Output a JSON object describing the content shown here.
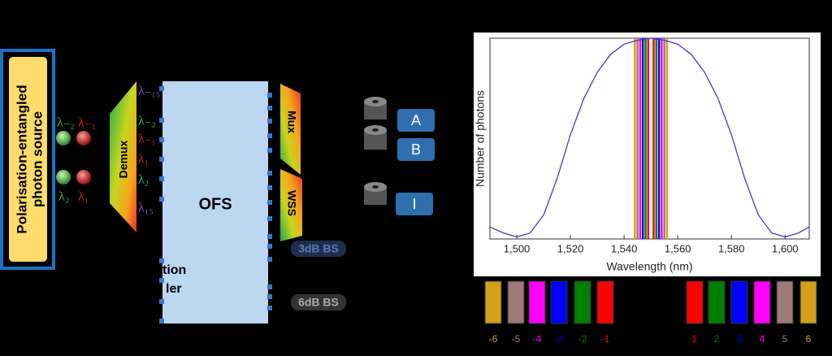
{
  "diagram": {
    "source": [
      "Polarisation-entangled",
      "photon source"
    ],
    "pair_labels": [
      "λ₋₂",
      "λ₋₁",
      "λ₂",
      "λ₁"
    ],
    "demux": "Demux",
    "channel_labels": [
      "λ₋₁₅",
      "λ₋₂",
      "λ₋₁",
      "λ₁",
      "λ₂",
      "λ₁₅"
    ],
    "ofs": "OFS",
    "partial_label": [
      "tion",
      "ler"
    ],
    "mux": "Mux",
    "wss": "WSS",
    "users": [
      "A",
      "B",
      "I"
    ],
    "splitters": [
      "3dB BS",
      "6dB BS"
    ]
  },
  "chart_data": {
    "type": "line",
    "xlabel": "Wavelength (nm)",
    "ylabel": "Number of photons",
    "x": [
      1490,
      1495,
      1500,
      1505,
      1510,
      1515,
      1520,
      1525,
      1530,
      1535,
      1540,
      1545,
      1550,
      1555,
      1560,
      1565,
      1570,
      1575,
      1580,
      1585,
      1590,
      1595,
      1600,
      1605,
      1609
    ],
    "values": [
      0.06,
      0.03,
      0.01,
      0.03,
      0.12,
      0.3,
      0.52,
      0.7,
      0.83,
      0.92,
      0.97,
      0.99,
      1,
      0.99,
      0.97,
      0.92,
      0.83,
      0.7,
      0.52,
      0.3,
      0.12,
      0.03,
      0.01,
      0.03,
      0.06
    ],
    "color": "#3b3bd6",
    "xlim": [
      1490,
      1609
    ],
    "ylim": [
      0,
      1
    ],
    "xticks": [
      {
        "value": 1500,
        "label": "1,500"
      },
      {
        "value": 1520,
        "label": "1,520"
      },
      {
        "value": 1540,
        "label": "1,540"
      },
      {
        "value": 1560,
        "label": "1,560"
      },
      {
        "value": 1580,
        "label": "1,580"
      },
      {
        "value": 1600,
        "label": "1,600"
      }
    ],
    "channels": [
      {
        "name": "-6",
        "color": "#d4a017",
        "wavelength": 1544
      },
      {
        "name": "-5",
        "color": "#9e7b78",
        "wavelength": 1545
      },
      {
        "name": "-4",
        "color": "#ff00ff",
        "wavelength": 1546
      },
      {
        "name": "-3",
        "color": "#0000ff",
        "wavelength": 1547
      },
      {
        "name": "-2",
        "color": "#008000",
        "wavelength": 1548
      },
      {
        "name": "-1",
        "color": "#ff0000",
        "wavelength": 1549
      },
      {
        "name": "1",
        "color": "#ff0000",
        "wavelength": 1551
      },
      {
        "name": "2",
        "color": "#008000",
        "wavelength": 1552
      },
      {
        "name": "3",
        "color": "#0000ff",
        "wavelength": 1553
      },
      {
        "name": "4",
        "color": "#ff00ff",
        "wavelength": 1554
      },
      {
        "name": "5",
        "color": "#9e7b78",
        "wavelength": 1555
      },
      {
        "name": "6",
        "color": "#d4a017",
        "wavelength": 1556
      }
    ]
  }
}
